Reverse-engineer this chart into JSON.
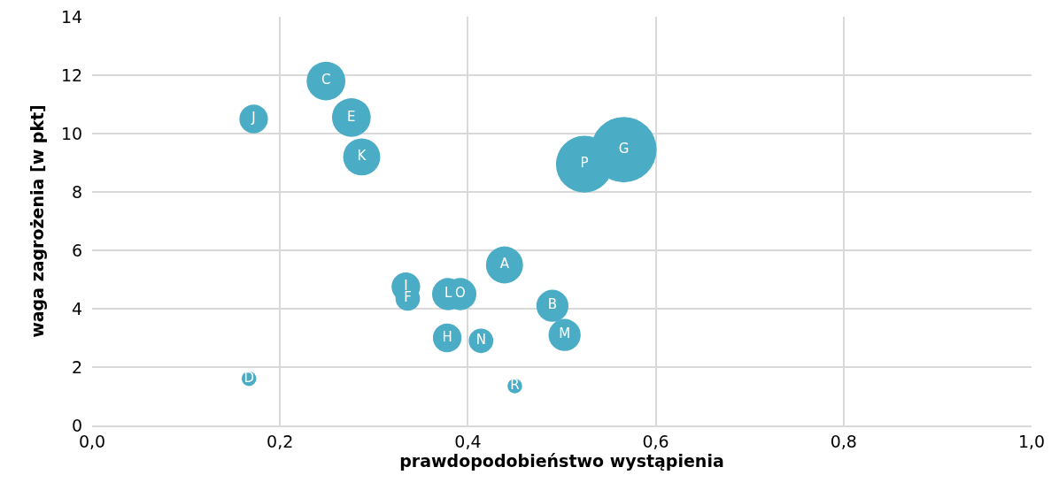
{
  "chart_data": {
    "type": "bubble",
    "xlabel": "prawdopodobieństwo wystąpienia",
    "ylabel": "waga zagrożenia [w pkt]",
    "x": [
      0.249,
      0.172,
      0.276,
      0.287,
      0.524,
      0.566,
      0.439,
      0.334,
      0.336,
      0.379,
      0.392,
      0.49,
      0.503,
      0.378,
      0.414,
      0.167,
      0.45
    ],
    "values": [
      11.8,
      10.5,
      10.55,
      9.2,
      8.95,
      9.45,
      5.5,
      4.75,
      4.35,
      4.5,
      4.5,
      4.1,
      3.1,
      3.0,
      2.9,
      1.6,
      1.35
    ],
    "sizes": [
      0.35,
      0.19,
      0.35,
      0.32,
      0.75,
      1,
      0.32,
      0.19,
      0.14,
      0.24,
      0.24,
      0.24,
      0.24,
      0.19,
      0.14,
      0.05,
      0.05
    ],
    "value_labels": [
      "C",
      "J",
      "E",
      "K",
      "P",
      "G",
      "A",
      "I",
      "F",
      "L",
      "O",
      "B",
      "M",
      "H",
      "N",
      "D",
      "R"
    ],
    "color": "#4bacc6",
    "xlim": [
      0,
      1
    ],
    "xticks": [
      {
        "value": 0,
        "label": "0,0"
      },
      {
        "value": 0.2,
        "label": "0,2"
      },
      {
        "value": 0.4,
        "label": "0,4"
      },
      {
        "value": 0.6,
        "label": "0,6"
      },
      {
        "value": 0.8,
        "label": "0,8"
      },
      {
        "value": 1,
        "label": "1,0"
      }
    ],
    "ylim": [
      0,
      14
    ],
    "yticks": [
      0,
      2,
      4,
      6,
      8,
      10,
      12,
      14
    ],
    "grid": true
  }
}
